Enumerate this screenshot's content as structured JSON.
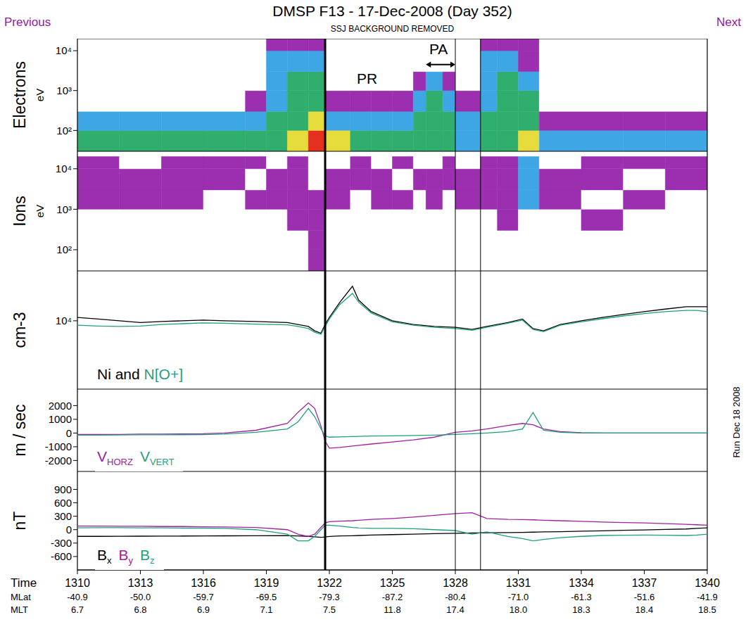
{
  "page": {
    "previous": "Previous",
    "title": "DMSP F13 - 17-Dec-2008 (Day 352)",
    "subtitle": "SSJ BACKGROUND REMOVED",
    "next": "Next",
    "run": "Run Dec 18 2008"
  },
  "x_axis": {
    "xlim": [
      1310,
      1340
    ],
    "xticks": [
      1310,
      1313,
      1316,
      1319,
      1322,
      1325,
      1328,
      1331,
      1334,
      1337,
      1340
    ],
    "label": "Time",
    "rows": [
      {
        "label": "MLat",
        "values": [
          "-40.9",
          "-50.0",
          "-59.7",
          "-69.5",
          "-79.3",
          "-87.2",
          "-80.4",
          "-71.0",
          "-61.3",
          "-51.6",
          "-41.9"
        ]
      },
      {
        "label": "MLT",
        "values": [
          "6.7",
          "6.8",
          "6.9",
          "7.1",
          "7.5",
          "11.8",
          "17.4",
          "18.0",
          "18.3",
          "18.4",
          "18.5"
        ]
      }
    ]
  },
  "vertical_lines": [
    {
      "x": 1321.8,
      "line_style": "thick"
    },
    {
      "x": 1328,
      "line_style": "thin"
    },
    {
      "x": 1329.2,
      "line_style": "thin"
    }
  ],
  "chart_data": [
    {
      "type": "heatmap",
      "ylabel": "Electrons",
      "yunit": "eV",
      "log": "y",
      "ylim": [
        30,
        20000
      ],
      "yticks": [
        {
          "value": 100,
          "label": "10²"
        },
        {
          "value": 1000,
          "label": "10³"
        },
        {
          "value": 10000,
          "label": "10⁴"
        }
      ],
      "time_bins": [
        1310,
        1312,
        1314,
        1316,
        1318,
        1319,
        1320,
        1321,
        1321.8,
        1323,
        1324,
        1325,
        1326,
        1326.6,
        1327.4,
        1328,
        1329.2,
        1330,
        1331,
        1332,
        1334,
        1336,
        1338,
        1340
      ],
      "energy_bins": [
        30,
        100,
        300,
        1000,
        3000,
        10000,
        20000
      ],
      "level_colors": [
        "#ffffff",
        "#9b2fb0",
        "#3fa6e6",
        "#2fae6e",
        "#e6dc3c",
        "#e3301f"
      ],
      "cells": [
        [
          3,
          2,
          0,
          0,
          0,
          0
        ],
        [
          3,
          2,
          0,
          0,
          0,
          0
        ],
        [
          3,
          2,
          0,
          0,
          0,
          0
        ],
        [
          3,
          2,
          0,
          0,
          0,
          0
        ],
        [
          3,
          2,
          1,
          0,
          0,
          0
        ],
        [
          3,
          3,
          2,
          2,
          2,
          1
        ],
        [
          4,
          3,
          3,
          3,
          2,
          1
        ],
        [
          5,
          4,
          3,
          3,
          2,
          1
        ],
        [
          4,
          2,
          1,
          0,
          0,
          0
        ],
        [
          3,
          2,
          1,
          0,
          0,
          0
        ],
        [
          3,
          2,
          1,
          0,
          0,
          0
        ],
        [
          3,
          2,
          1,
          0,
          0,
          0
        ],
        [
          3,
          3,
          2,
          1,
          0,
          0
        ],
        [
          3,
          3,
          3,
          2,
          0,
          0
        ],
        [
          3,
          3,
          2,
          1,
          0,
          0
        ],
        [
          2,
          2,
          1,
          0,
          0,
          0
        ],
        [
          3,
          3,
          2,
          2,
          2,
          1
        ],
        [
          3,
          3,
          3,
          3,
          2,
          1
        ],
        [
          4,
          3,
          3,
          2,
          1,
          1
        ],
        [
          2,
          1,
          0,
          0,
          0,
          0
        ],
        [
          2,
          1,
          0,
          0,
          0,
          0
        ],
        [
          2,
          1,
          0,
          0,
          0,
          0
        ],
        [
          2,
          1,
          0,
          0,
          0,
          0
        ]
      ],
      "annotations": [
        {
          "text": "PR",
          "x": 1323.8,
          "y": 2000
        },
        {
          "text": "PA",
          "x": 1327.2,
          "y": 11000,
          "arrow": {
            "x": [
              1326.6,
              1328
            ],
            "y": 4500
          }
        }
      ]
    },
    {
      "type": "heatmap",
      "ylabel": "Ions",
      "yunit": "eV",
      "log": "y",
      "ylim": [
        30,
        27000
      ],
      "yticks": [
        {
          "value": 100,
          "label": "10²"
        },
        {
          "value": 1000,
          "label": "10³"
        },
        {
          "value": 10000,
          "label": "10⁴"
        }
      ],
      "time_bins": [
        1310,
        1312,
        1314,
        1316,
        1318,
        1319,
        1320,
        1321,
        1321.8,
        1323,
        1324,
        1325,
        1326,
        1326.6,
        1327.4,
        1328,
        1329.2,
        1330,
        1331,
        1332,
        1334,
        1336,
        1338,
        1340
      ],
      "energy_bins": [
        30,
        100,
        300,
        1000,
        3000,
        10000,
        20000
      ],
      "level_colors": [
        "#ffffff",
        "#9b2fb0",
        "#3fa6e6",
        "#2fae6e",
        "#e6dc3c",
        "#e3301f"
      ],
      "cells": [
        [
          0,
          0,
          0,
          1,
          1,
          1
        ],
        [
          0,
          0,
          0,
          1,
          1,
          0
        ],
        [
          0,
          0,
          0,
          1,
          1,
          1
        ],
        [
          0,
          0,
          0,
          0,
          1,
          1
        ],
        [
          0,
          0,
          0,
          1,
          0,
          1
        ],
        [
          0,
          0,
          0,
          1,
          1,
          0
        ],
        [
          0,
          0,
          1,
          1,
          1,
          1
        ],
        [
          1,
          1,
          1,
          1,
          0,
          0
        ],
        [
          0,
          0,
          0,
          1,
          1,
          0
        ],
        [
          0,
          0,
          0,
          0,
          1,
          1
        ],
        [
          0,
          0,
          0,
          1,
          1,
          0
        ],
        [
          0,
          0,
          0,
          1,
          0,
          1
        ],
        [
          0,
          0,
          0,
          0,
          1,
          0
        ],
        [
          0,
          0,
          0,
          1,
          1,
          0
        ],
        [
          0,
          0,
          0,
          0,
          1,
          1
        ],
        [
          0,
          0,
          0,
          1,
          1,
          0
        ],
        [
          0,
          0,
          0,
          1,
          1,
          1
        ],
        [
          0,
          0,
          1,
          1,
          1,
          1
        ],
        [
          0,
          0,
          0,
          2,
          2,
          2
        ],
        [
          0,
          0,
          0,
          1,
          1,
          0
        ],
        [
          0,
          0,
          1,
          0,
          1,
          1
        ],
        [
          0,
          0,
          0,
          1,
          0,
          1
        ],
        [
          0,
          0,
          0,
          0,
          1,
          1
        ]
      ]
    },
    {
      "type": "line",
      "ylabel": "cm-3",
      "log": "y",
      "ylim": [
        1400,
        42000
      ],
      "yticks": [
        {
          "value": 10000,
          "label": "10⁴"
        }
      ],
      "legend": "lower left",
      "legend_joiner": "and",
      "x": [
        1310,
        1311,
        1312,
        1313,
        1314,
        1315,
        1316,
        1317,
        1318.5,
        1320,
        1320.5,
        1321,
        1321.3,
        1321.6,
        1321.8,
        1322,
        1322.5,
        1323.1,
        1323.4,
        1324,
        1325,
        1326,
        1327,
        1328,
        1328.8,
        1329.5,
        1330.5,
        1331.2,
        1331.7,
        1332.2,
        1333,
        1334,
        1335,
        1336,
        1337,
        1338,
        1339,
        1339.5,
        1340
      ],
      "series": [
        {
          "name": "Ni",
          "color": "#000000",
          "values": [
            11000,
            10500,
            10000,
            9500,
            9800,
            10000,
            10200,
            10000,
            9800,
            9500,
            9000,
            8500,
            7500,
            7000,
            9000,
            11000,
            17000,
            27000,
            18000,
            13000,
            10000,
            9000,
            8500,
            8300,
            7800,
            8500,
            9500,
            10500,
            8000,
            7500,
            9000,
            10000,
            11000,
            12000,
            13000,
            14000,
            15000,
            15000,
            15000
          ]
        },
        {
          "name": "N[O+]",
          "color": "#1f9f7f",
          "values": [
            8800,
            8600,
            8500,
            8600,
            9000,
            9200,
            9400,
            9300,
            9100,
            8900,
            8500,
            8000,
            7200,
            6800,
            8500,
            10500,
            16000,
            22000,
            17000,
            12500,
            9700,
            8800,
            8300,
            8000,
            7600,
            8300,
            9300,
            10200,
            7800,
            7300,
            8800,
            9700,
            10600,
            11500,
            12300,
            13000,
            13500,
            13500,
            13000
          ]
        }
      ]
    },
    {
      "type": "line",
      "ylabel": "m / sec",
      "ylim": [
        -2800,
        3200
      ],
      "yticks": [
        -2000,
        -1000,
        0,
        1000,
        2000
      ],
      "legend": "lower left",
      "x": [
        1310,
        1311,
        1312,
        1313,
        1314,
        1315,
        1316,
        1317,
        1318.5,
        1320,
        1320.5,
        1321,
        1321.3,
        1321.6,
        1321.8,
        1322,
        1322.5,
        1323.1,
        1323.4,
        1324,
        1325,
        1326,
        1327,
        1328,
        1328.8,
        1329.5,
        1330.5,
        1331.2,
        1331.7,
        1332.2,
        1333,
        1334,
        1335,
        1336,
        1337,
        1338,
        1339,
        1339.5,
        1340
      ],
      "series": [
        {
          "name": "VHORZ",
          "color": "#a0209f",
          "values": [
            -100,
            -100,
            -100,
            -80,
            -80,
            -60,
            -50,
            0,
            200,
            700,
            1500,
            2200,
            1800,
            500,
            -600,
            -1100,
            -1050,
            -950,
            -900,
            -800,
            -650,
            -500,
            -300,
            50,
            150,
            300,
            550,
            700,
            600,
            300,
            100,
            30,
            0,
            0,
            0,
            0,
            0,
            0,
            0
          ]
        },
        {
          "name": "VVERT",
          "color": "#1f9f7f",
          "values": [
            -150,
            -150,
            -140,
            -130,
            -130,
            -120,
            -110,
            -80,
            50,
            300,
            800,
            1800,
            1200,
            300,
            -200,
            -300,
            -280,
            -250,
            -240,
            -220,
            -200,
            -180,
            -150,
            -100,
            -50,
            0,
            100,
            300,
            1500,
            200,
            50,
            0,
            0,
            0,
            0,
            0,
            0,
            0,
            0
          ]
        }
      ]
    },
    {
      "type": "line",
      "ylabel": "nT",
      "ylim": [
        -900,
        1300
      ],
      "yticks": [
        900,
        600,
        300,
        0,
        -300,
        -600
      ],
      "legend": "lower left",
      "x": [
        1310,
        1311,
        1312,
        1313,
        1314,
        1315,
        1316,
        1317,
        1318.5,
        1320,
        1320.5,
        1321,
        1321.3,
        1321.6,
        1321.8,
        1322,
        1322.5,
        1323.1,
        1323.4,
        1324,
        1325,
        1326,
        1327,
        1328,
        1328.8,
        1329.5,
        1330.5,
        1331.2,
        1331.7,
        1332.2,
        1333,
        1334,
        1335,
        1336,
        1337,
        1338,
        1339,
        1339.5,
        1340
      ],
      "series": [
        {
          "name": "Bx",
          "color": "#000000",
          "values": [
            -150,
            -150,
            -148,
            -146,
            -144,
            -142,
            -140,
            -138,
            -136,
            -134,
            -140,
            -150,
            -160,
            -170,
            -165,
            -150,
            -140,
            -135,
            -130,
            -120,
            -110,
            -100,
            -90,
            -80,
            -75,
            -70,
            -65,
            -60,
            -55,
            -50,
            -45,
            -35,
            -25,
            -15,
            -5,
            5,
            15,
            30,
            40
          ]
        },
        {
          "name": "By",
          "color": "#a0209f",
          "values": [
            80,
            80,
            75,
            75,
            70,
            70,
            65,
            60,
            50,
            0,
            -100,
            -150,
            -100,
            50,
            150,
            180,
            190,
            200,
            210,
            230,
            250,
            280,
            320,
            360,
            380,
            250,
            230,
            225,
            220,
            210,
            200,
            185,
            170,
            160,
            150,
            135,
            120,
            110,
            100
          ]
        },
        {
          "name": "Bz",
          "color": "#1f9f7f",
          "values": [
            40,
            45,
            45,
            40,
            40,
            35,
            35,
            30,
            0,
            -100,
            -250,
            -250,
            -150,
            0,
            100,
            100,
            80,
            50,
            40,
            30,
            30,
            20,
            0,
            -20,
            -100,
            -50,
            -150,
            -200,
            -250,
            -220,
            -180,
            -150,
            -130,
            -125,
            -120,
            -125,
            -130,
            -120,
            -100
          ]
        }
      ]
    }
  ]
}
